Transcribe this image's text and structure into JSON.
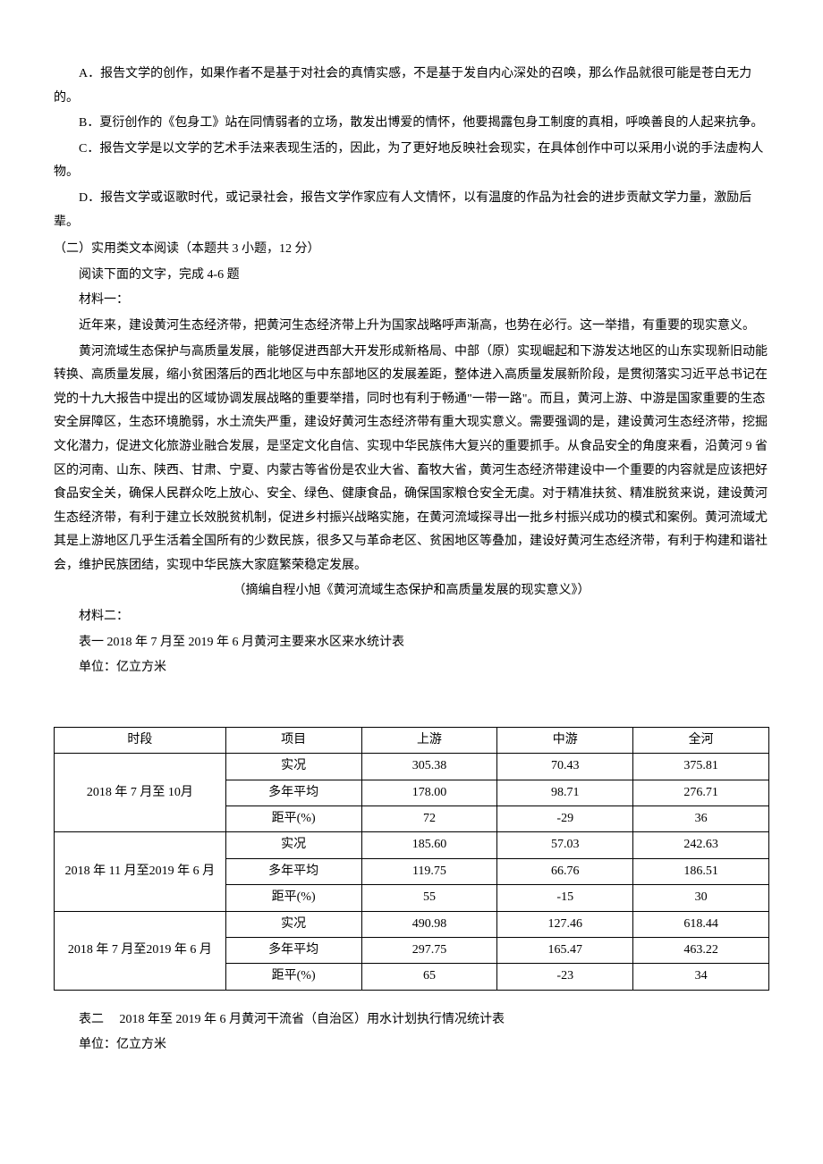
{
  "options": {
    "A": "A．报告文学的创作，如果作者不是基于对社会的真情实感，不是基于发自内心深处的召唤，那么作品就很可能是苍白无力的。",
    "B": "B．夏衍创作的《包身工》站在同情弱者的立场，散发出博爱的情怀，他要揭露包身工制度的真相，呼唤善良的人起来抗争。",
    "C": "C．报告文学是以文学的艺术手法来表现生活的，因此，为了更好地反映社会现实，在具体创作中可以采用小说的手法虚构人物。",
    "D": "D．报告文学或讴歌时代，或记录社会，报告文学作家应有人文情怀，以有温度的作品为社会的进步贡献文学力量，激励后辈。"
  },
  "section2": {
    "heading": "（二）实用类文本阅读（本题共 3 小题，12 分）",
    "instruction": "阅读下面的文字，完成 4-6 题",
    "material1_label": "材料一：",
    "para1": "近年来，建设黄河生态经济带，把黄河生态经济带上升为国家战略呼声渐高，也势在必行。这一举措，有重要的现实意义。",
    "para2": "黄河流域生态保护与高质量发展，能够促进西部大开发形成新格局、中部（原）实现崛起和下游发达地区的山东实现新旧动能转换、高质量发展，缩小贫困落后的西北地区与中东部地区的发展差距，整体进入高质量发展新阶段，是贯彻落实习近平总书记在党的十九大报告中提出的区域协调发展战略的重要举措，同时也有利于畅通\"一带一路\"。而且，黄河上游、中游是国家重要的生态安全屏障区，生态环境脆弱，水土流失严重，建设好黄河生态经济带有重大现实意义。需要强调的是，建设黄河生态经济带，挖掘文化潜力，促进文化旅游业融合发展，是坚定文化自信、实现中华民族伟大复兴的重要抓手。从食品安全的角度来看，沿黄河 9 省区的河南、山东、陕西、甘肃、宁夏、内蒙古等省份是农业大省、畜牧大省，黄河生态经济带建设中一个重要的内容就是应该把好食品安全关，确保人民群众吃上放心、安全、绿色、健康食品，确保国家粮仓安全无虞。对于精准扶贫、精准脱贫来说，建设黄河生态经济带，有利于建立长效脱贫机制，促进乡村振兴战略实施，在黄河流域探寻出一批乡村振兴成功的模式和案例。黄河流域尤其是上游地区几乎生活着全国所有的少数民族，很多又与革命老区、贫困地区等叠加，建设好黄河生态经济带，有利于构建和谐社会，维护民族团结，实现中华民族大家庭繁荣稳定发展。",
    "citation": "（摘编自程小旭《黄河流域生态保护和高质量发展的现实意义》）",
    "material2_label": "材料二：",
    "table1_title": "表一  2018 年 7 月至 2019 年 6 月黄河主要来水区来水统计表",
    "unit": "单位：亿立方米",
    "table2_title": "表二  2018 年至 2019 年 6 月黄河干流省（自治区）用水计划执行情况统计表"
  },
  "table1": {
    "headers": {
      "period": "时段",
      "item": "项目",
      "upstream": "上游",
      "midstream": "中游",
      "whole": "全河"
    },
    "item_labels": {
      "actual": "实况",
      "average": "多年平均",
      "anomaly": "距平(%)"
    },
    "periods": [
      {
        "label": "2018 年 7 月至 10月",
        "rows": [
          {
            "item": "actual",
            "upstream": "305.38",
            "midstream": "70.43",
            "whole": "375.81"
          },
          {
            "item": "average",
            "upstream": "178.00",
            "midstream": "98.71",
            "whole": "276.71"
          },
          {
            "item": "anomaly",
            "upstream": "72",
            "midstream": "-29",
            "whole": "36"
          }
        ]
      },
      {
        "label": "2018 年 11 月至2019 年 6 月",
        "rows": [
          {
            "item": "actual",
            "upstream": "185.60",
            "midstream": "57.03",
            "whole": "242.63"
          },
          {
            "item": "average",
            "upstream": "119.75",
            "midstream": "66.76",
            "whole": "186.51"
          },
          {
            "item": "anomaly",
            "upstream": "55",
            "midstream": "-15",
            "whole": "30"
          }
        ]
      },
      {
        "label": "2018 年 7 月至2019 年 6 月",
        "rows": [
          {
            "item": "actual",
            "upstream": "490.98",
            "midstream": "127.46",
            "whole": "618.44"
          },
          {
            "item": "average",
            "upstream": "297.75",
            "midstream": "165.47",
            "whole": "463.22"
          },
          {
            "item": "anomaly",
            "upstream": "65",
            "midstream": "-23",
            "whole": "34"
          }
        ]
      }
    ]
  }
}
